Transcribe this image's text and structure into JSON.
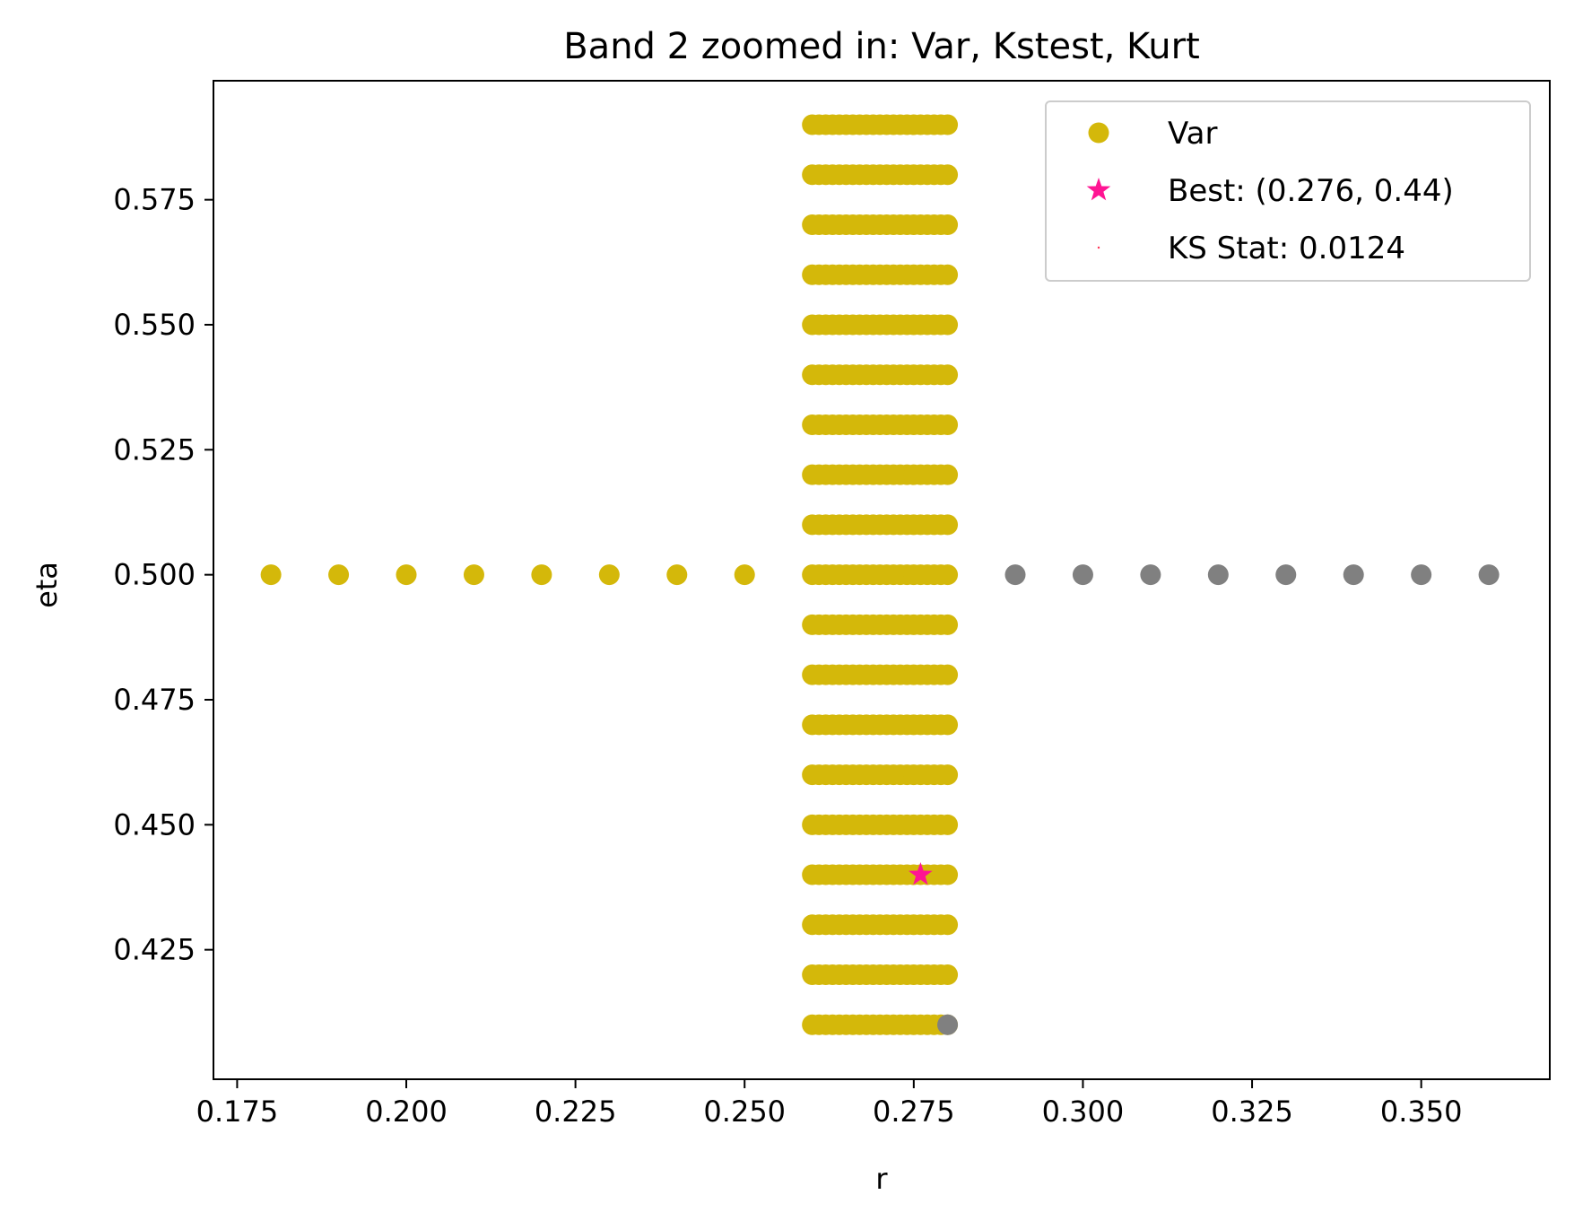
{
  "chart_data": {
    "type": "scatter",
    "title": "Band 2 zoomed in: Var, Kstest, Kurt",
    "xlabel": "r",
    "ylabel": "eta",
    "xlim": [
      0.1715,
      0.369
    ],
    "ylim": [
      0.3991,
      0.5988
    ],
    "x_ticks": [
      0.175,
      0.2,
      0.225,
      0.25,
      0.275,
      0.3,
      0.325,
      0.35
    ],
    "x_tick_labels": [
      "0.175",
      "0.200",
      "0.225",
      "0.250",
      "0.275",
      "0.300",
      "0.325",
      "0.350"
    ],
    "y_ticks": [
      0.425,
      0.45,
      0.475,
      0.5,
      0.525,
      0.55,
      0.575
    ],
    "y_tick_labels": [
      "0.425",
      "0.450",
      "0.475",
      "0.500",
      "0.525",
      "0.550",
      "0.575"
    ],
    "grid": false,
    "legend_position": "top-right",
    "colors": {
      "var": "#d4b80a",
      "gray": "#808080",
      "best": "#ff1493",
      "ks": "#ff3355"
    },
    "series": [
      {
        "name": "Var",
        "color": "#d4b80a",
        "marker": "circle",
        "points": {
          "row_x_start": 0.26,
          "row_x_end": 0.28,
          "row_x_step": 0.001,
          "row_eta": [
            0.41,
            0.42,
            0.43,
            0.44,
            0.45,
            0.46,
            0.47,
            0.48,
            0.49,
            0.5,
            0.51,
            0.52,
            0.53,
            0.54,
            0.55,
            0.56,
            0.57,
            0.58,
            0.59
          ],
          "extra": [
            {
              "x": 0.18,
              "y": 0.5
            },
            {
              "x": 0.19,
              "y": 0.5
            },
            {
              "x": 0.2,
              "y": 0.5
            },
            {
              "x": 0.21,
              "y": 0.5
            },
            {
              "x": 0.22,
              "y": 0.5
            },
            {
              "x": 0.23,
              "y": 0.5
            },
            {
              "x": 0.24,
              "y": 0.5
            },
            {
              "x": 0.25,
              "y": 0.5
            }
          ]
        }
      },
      {
        "color": "#808080",
        "marker": "circle",
        "points": [
          {
            "x": 0.29,
            "y": 0.5
          },
          {
            "x": 0.3,
            "y": 0.5
          },
          {
            "x": 0.31,
            "y": 0.5
          },
          {
            "x": 0.32,
            "y": 0.5
          },
          {
            "x": 0.33,
            "y": 0.5
          },
          {
            "x": 0.34,
            "y": 0.5
          },
          {
            "x": 0.35,
            "y": 0.5
          },
          {
            "x": 0.36,
            "y": 0.5
          },
          {
            "x": 0.28,
            "y": 0.41
          }
        ]
      },
      {
        "name": "Best: (0.276, 0.44)",
        "color": "#ff1493",
        "marker": "star",
        "points": [
          {
            "x": 0.276,
            "y": 0.44
          }
        ]
      },
      {
        "name": "KS Stat: 0.0124",
        "color": "#ff3355",
        "marker": "point",
        "points": []
      }
    ]
  }
}
